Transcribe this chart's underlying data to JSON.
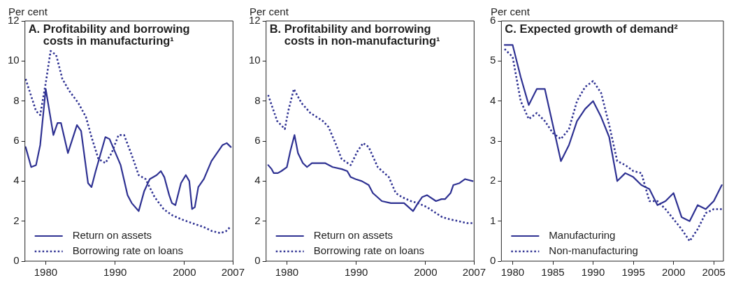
{
  "chart_data": [
    {
      "type": "line",
      "title": "A. Profitability and borrowing costs in manufacturing¹",
      "ylabel": "Per cent",
      "xlim": [
        1977,
        2007
      ],
      "xticks": [
        1980,
        1990,
        2000,
        2007
      ],
      "ylim": [
        0,
        12
      ],
      "yticks": [
        0,
        2,
        4,
        6,
        8,
        10,
        12
      ],
      "legend": "bottom left",
      "series": [
        {
          "name": "Return on assets",
          "color": "#2e3192",
          "line_style": "solid",
          "x": [
            1977.1,
            1977.9,
            1978.6,
            1979.2,
            1980.0,
            1981.1,
            1981.7,
            1982.2,
            1983.2,
            1984.5,
            1985.1,
            1986.1,
            1986.6,
            1987.2,
            1988.6,
            1989.2,
            1990.8,
            1991.8,
            1992.4,
            1993.4,
            1994.2,
            1995.0,
            1996.0,
            1996.6,
            1997.1,
            1997.8,
            1998.2,
            1998.7,
            1999.5,
            2000.2,
            2000.7,
            2001.1,
            2001.5,
            2002.0,
            2002.8,
            2003.9,
            2004.7,
            2005.5,
            2006.1,
            2006.7
          ],
          "values": [
            5.7,
            4.7,
            4.8,
            5.8,
            8.6,
            6.3,
            6.9,
            6.9,
            5.4,
            6.8,
            6.5,
            3.9,
            3.7,
            4.5,
            6.2,
            6.1,
            4.8,
            3.3,
            2.9,
            2.5,
            3.5,
            4.1,
            4.3,
            4.5,
            4.2,
            3.3,
            2.9,
            2.8,
            3.9,
            4.3,
            4.0,
            2.6,
            2.7,
            3.7,
            4.1,
            5.0,
            5.4,
            5.8,
            5.9,
            5.7
          ]
        },
        {
          "name": "Borrowing rate on loans",
          "color": "#2e3192",
          "line_style": "dotted",
          "x": [
            1977.1,
            1978.6,
            1979.2,
            1980.0,
            1980.7,
            1981.5,
            1982.4,
            1983.4,
            1984.7,
            1985.8,
            1986.6,
            1987.6,
            1988.6,
            1989.5,
            1990.5,
            1991.3,
            1992.4,
            1993.4,
            1994.4,
            1995.7,
            1997.0,
            1998.2,
            1999.5,
            2001.1,
            2002.8,
            2004.0,
            2005.2,
            2006.0,
            2006.6
          ],
          "values": [
            9.1,
            7.5,
            7.3,
            8.9,
            10.5,
            10.3,
            9.1,
            8.5,
            7.9,
            7.2,
            6.2,
            5.1,
            4.9,
            5.4,
            6.3,
            6.3,
            5.3,
            4.3,
            4.1,
            3.2,
            2.6,
            2.3,
            2.1,
            1.9,
            1.7,
            1.5,
            1.4,
            1.5,
            1.7
          ]
        }
      ]
    },
    {
      "type": "line",
      "title": "B. Profitability and borrowing costs in non-manufacturing¹",
      "ylabel": "Per cent",
      "xlim": [
        1977,
        2007
      ],
      "xticks": [
        1980,
        1990,
        2000,
        2007
      ],
      "ylim": [
        0,
        12
      ],
      "yticks": [
        0,
        2,
        4,
        6,
        8,
        10,
        12
      ],
      "legend": "bottom left",
      "series": [
        {
          "name": "Return on assets",
          "color": "#2e3192",
          "line_style": "solid",
          "x": [
            1977.3,
            1977.8,
            1978.1,
            1978.7,
            1979.2,
            1980.0,
            1980.5,
            1981.1,
            1981.6,
            1982.3,
            1982.9,
            1983.6,
            1984.9,
            1985.5,
            1986.6,
            1987.9,
            1988.7,
            1989.2,
            1989.9,
            1990.8,
            1991.8,
            1992.4,
            1993.7,
            1995.0,
            1996.9,
            1998.2,
            1998.9,
            1999.5,
            2000.2,
            2001.5,
            2002.3,
            2002.8,
            2003.6,
            2004.0,
            2004.9,
            2005.7,
            2006.8
          ],
          "values": [
            4.8,
            4.6,
            4.4,
            4.4,
            4.5,
            4.7,
            5.5,
            6.3,
            5.4,
            4.9,
            4.7,
            4.9,
            4.9,
            4.9,
            4.7,
            4.6,
            4.5,
            4.2,
            4.1,
            4.0,
            3.8,
            3.4,
            3.0,
            2.9,
            2.9,
            2.5,
            2.9,
            3.2,
            3.3,
            3.0,
            3.1,
            3.1,
            3.4,
            3.8,
            3.9,
            4.1,
            4.0
          ]
        },
        {
          "name": "Borrowing rate on loans",
          "color": "#2e3192",
          "line_style": "dotted",
          "x": [
            1977.3,
            1978.6,
            1979.7,
            1980.2,
            1981.0,
            1982.1,
            1983.4,
            1985.2,
            1986.0,
            1987.0,
            1987.9,
            1989.2,
            1990.2,
            1991.0,
            1991.8,
            1993.1,
            1994.7,
            1995.7,
            1996.6,
            1997.9,
            1998.9,
            2000.2,
            2001.5,
            2002.4,
            2003.4,
            2004.7,
            2006.0,
            2006.8
          ],
          "values": [
            8.3,
            7.0,
            6.6,
            7.5,
            8.6,
            7.9,
            7.4,
            7.0,
            6.7,
            5.9,
            5.1,
            4.8,
            5.5,
            5.9,
            5.7,
            4.7,
            4.2,
            3.4,
            3.2,
            3.0,
            2.9,
            2.7,
            2.4,
            2.2,
            2.1,
            2.0,
            1.9,
            1.9
          ]
        }
      ]
    },
    {
      "type": "line",
      "title": "C. Expected growth of demand²",
      "ylabel": "Per cent",
      "xlim": [
        1978.6,
        2006.2
      ],
      "xticks": [
        1980,
        1985,
        1990,
        1995,
        2000,
        2005
      ],
      "ylim": [
        0,
        6
      ],
      "yticks": [
        0,
        1,
        2,
        3,
        4,
        5,
        6
      ],
      "legend": "bottom left",
      "x": [
        1979,
        1980,
        1981,
        1982,
        1983,
        1984,
        1985,
        1986,
        1987,
        1988,
        1989,
        1990,
        1991,
        1992,
        1993,
        1994,
        1995,
        1996,
        1997,
        1998,
        1999,
        2000,
        2001,
        2002,
        2003,
        2004,
        2005,
        2006
      ],
      "series": [
        {
          "name": "Manufacturing",
          "color": "#2e3192",
          "line_style": "solid",
          "values": [
            5.4,
            5.4,
            4.6,
            3.9,
            4.3,
            4.3,
            3.4,
            2.5,
            2.9,
            3.5,
            3.8,
            4.0,
            3.6,
            3.1,
            2.0,
            2.2,
            2.1,
            1.9,
            1.8,
            1.4,
            1.5,
            1.7,
            1.1,
            1.0,
            1.4,
            1.3,
            1.5,
            1.9
          ]
        },
        {
          "name": "Non-manufacturing",
          "color": "#2e3192",
          "line_style": "dotted",
          "values": [
            5.3,
            5.1,
            4.0,
            3.55,
            3.7,
            3.5,
            3.2,
            3.05,
            3.3,
            4.0,
            4.35,
            4.5,
            4.2,
            3.4,
            2.5,
            2.4,
            2.25,
            2.2,
            1.5,
            1.5,
            1.3,
            1.05,
            0.8,
            0.5,
            0.8,
            1.2,
            1.3,
            1.3
          ]
        }
      ]
    }
  ]
}
